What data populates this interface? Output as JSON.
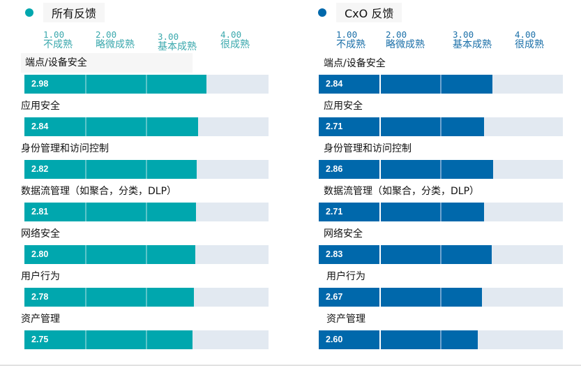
{
  "chart_data": [
    {
      "type": "bar",
      "orientation": "horizontal",
      "title": "所有反馈",
      "color": "#00a7ae",
      "scale_color": "#3aa8ad",
      "xlim": [
        0,
        4
      ],
      "scale_ticks": [
        {
          "value": "1.00",
          "label": "不成熟"
        },
        {
          "value": "2.00",
          "label": "略微成熟"
        },
        {
          "value": "3.00",
          "label": "基本成熟"
        },
        {
          "value": "4.00",
          "label": "很成熟"
        }
      ],
      "categories": [
        "端点/设备安全",
        "应用安全",
        "身份管理和访问控制",
        "数据流管理（如聚合，分类，DLP）",
        "网络安全",
        "用户行为",
        "资产管理"
      ],
      "values": [
        2.98,
        2.84,
        2.82,
        2.81,
        2.8,
        2.78,
        2.75
      ],
      "value_labels": [
        "2.98",
        "2.84",
        "2.82",
        "2.81",
        "2.80",
        "2.78",
        "2.75"
      ]
    },
    {
      "type": "bar",
      "orientation": "horizontal",
      "title": "CxO 反馈",
      "color": "#0068ab",
      "scale_color": "#1a6fa8",
      "xlim": [
        0,
        4
      ],
      "scale_ticks": [
        {
          "value": "1.00",
          "label": "不成熟"
        },
        {
          "value": "2.00",
          "label": "略微成熟"
        },
        {
          "value": "3.00",
          "label": "基本成熟"
        },
        {
          "value": "4.00",
          "label": "很成熟"
        }
      ],
      "categories": [
        "端点/设备安全",
        "应用安全",
        "身份管理和访问控制",
        "数据流管理（如聚合，分类，DLP）",
        "网络安全",
        "用户行为",
        "资产管理"
      ],
      "values": [
        2.84,
        2.71,
        2.86,
        2.71,
        2.83,
        2.67,
        2.6
      ],
      "value_labels": [
        "2.84",
        "2.71",
        "2.86",
        "2.71",
        "2.83",
        "2.67",
        "2.60"
      ]
    }
  ],
  "track_color": "#e2e9f1"
}
